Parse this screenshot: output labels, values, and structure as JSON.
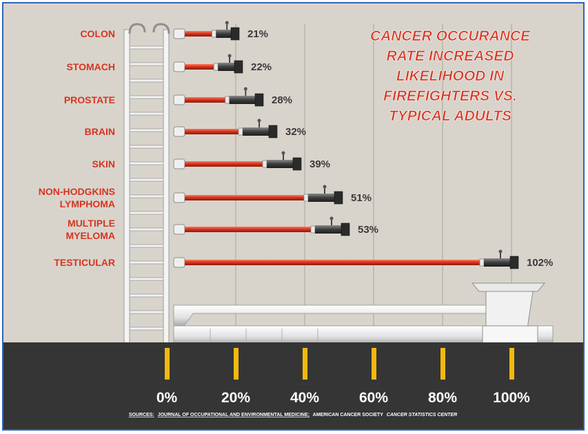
{
  "chart_data": {
    "type": "bar",
    "title": "CANCER OCCURANCE RATE INCREASED LIKELIHOOD IN FIREFIGHTERS VS. TYPICAL ADULTS",
    "title_lines": [
      "CANCER OCCURANCE",
      "RATE INCREASED",
      "LIKELIHOOD IN",
      "FIREFIGHTERS VS.",
      "TYPICAL ADULTS"
    ],
    "orientation": "horizontal",
    "categories": [
      "COLON",
      "STOMACH",
      "PROSTATE",
      "BRAIN",
      "SKIN",
      "NON-HODGKINS LYMPHOMA",
      "MULTIPLE MYELOMA",
      "TESTICULAR"
    ],
    "category_lines": [
      [
        "COLON"
      ],
      [
        "STOMACH"
      ],
      [
        "PROSTATE"
      ],
      [
        "BRAIN"
      ],
      [
        "SKIN"
      ],
      [
        "NON-HODGKINS",
        "LYMPHOMA"
      ],
      [
        "MULTIPLE",
        "MYELOMA"
      ],
      [
        "TESTICULAR"
      ]
    ],
    "values": [
      21,
      22,
      28,
      32,
      39,
      51,
      53,
      102
    ],
    "value_labels": [
      "21%",
      "22%",
      "28%",
      "32%",
      "39%",
      "51%",
      "53%",
      "102%"
    ],
    "xticks": [
      0,
      20,
      40,
      60,
      80,
      100
    ],
    "xtick_labels": [
      "0%",
      "20%",
      "40%",
      "60%",
      "80%",
      "100%"
    ],
    "xlim": [
      0,
      100
    ],
    "grid": "vertical",
    "xlabel": "",
    "ylabel": ""
  },
  "sources": {
    "prefix": "SOURCES:",
    "journal": "JOURNAL OF OCCUPATIONAL AND ENVIRONMENTAL MEDICINE;",
    "society": "AMERICAN CANCER SOCIETY",
    "center": "CANCER STATISTICS CENTER"
  },
  "colors": {
    "bar": "#cc2a12",
    "category_text": "#d8341f",
    "background": "#d8d4cc",
    "road": "#353535",
    "tick_marker": "#f2b90f",
    "frame": "#2f64b8"
  }
}
